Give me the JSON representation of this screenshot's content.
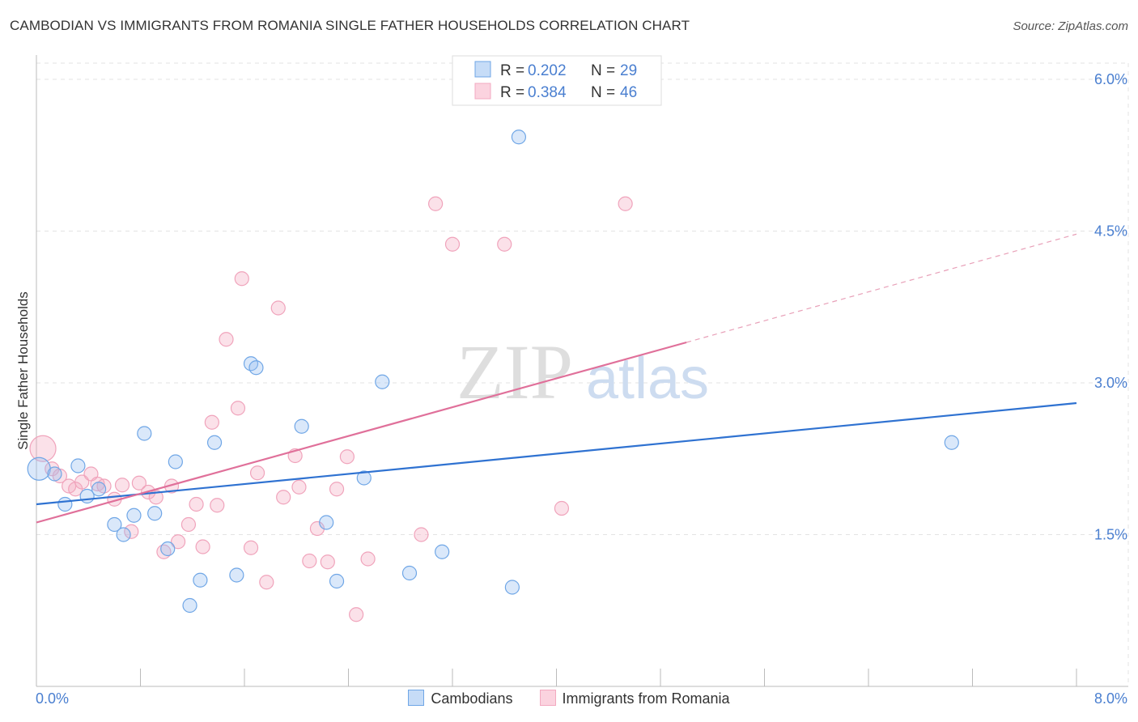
{
  "title": "CAMBODIAN VS IMMIGRANTS FROM ROMANIA SINGLE FATHER HOUSEHOLDS CORRELATION CHART",
  "source": "Source: ZipAtlas.com",
  "watermark": {
    "zip": "ZIP",
    "atlas": "atlas"
  },
  "colors": {
    "blue": "#6fa6e6",
    "blue_line": "#2f72d1",
    "pink": "#f3a9c0",
    "pink_line": "#e0709a",
    "axis_text": "#4a7fd0"
  },
  "chart_data": {
    "type": "scatter",
    "title": "CAMBODIAN VS IMMIGRANTS FROM ROMANIA SINGLE FATHER HOUSEHOLDS CORRELATION CHART",
    "xlabel": "",
    "ylabel": "Single Father Households",
    "xlim": [
      0,
      8
    ],
    "ylim": [
      0,
      6.2
    ],
    "x_tick_labels": [
      "0.0%",
      "8.0%"
    ],
    "y_ticks": [
      1.5,
      3.0,
      4.5,
      6.0
    ],
    "y_tick_labels": [
      "1.5%",
      "3.0%",
      "4.5%",
      "6.0%"
    ],
    "grid": true,
    "legend_position": "top-center",
    "series": [
      {
        "name": "Cambodians",
        "R": "0.202",
        "N": "29",
        "trend": {
          "x": [
            0,
            8
          ],
          "y": [
            1.8,
            2.8
          ]
        },
        "points": [
          [
            0.02,
            2.15
          ],
          [
            0.14,
            2.1
          ],
          [
            0.22,
            1.8
          ],
          [
            0.32,
            2.18
          ],
          [
            0.39,
            1.88
          ],
          [
            0.48,
            1.95
          ],
          [
            0.6,
            1.6
          ],
          [
            0.67,
            1.5
          ],
          [
            0.75,
            1.69
          ],
          [
            0.83,
            2.5
          ],
          [
            0.91,
            1.71
          ],
          [
            1.01,
            1.36
          ],
          [
            1.07,
            2.22
          ],
          [
            1.18,
            0.8
          ],
          [
            1.26,
            1.05
          ],
          [
            1.37,
            2.41
          ],
          [
            1.54,
            1.1
          ],
          [
            1.65,
            3.19
          ],
          [
            1.69,
            3.15
          ],
          [
            2.04,
            2.57
          ],
          [
            2.23,
            1.62
          ],
          [
            2.31,
            1.04
          ],
          [
            2.52,
            2.06
          ],
          [
            2.66,
            3.01
          ],
          [
            2.87,
            1.12
          ],
          [
            3.12,
            1.33
          ],
          [
            3.66,
            0.98
          ],
          [
            3.71,
            5.43
          ],
          [
            7.04,
            2.41
          ]
        ]
      },
      {
        "name": "Immigrants from Romania",
        "R": "0.384",
        "N": "46",
        "trend": {
          "x": [
            0,
            5.0
          ],
          "y": [
            1.62,
            3.4
          ]
        },
        "trend_dashed": {
          "x": [
            5.0,
            8.0
          ],
          "y": [
            3.4,
            4.47
          ]
        },
        "points": [
          [
            0.05,
            2.35
          ],
          [
            0.12,
            2.15
          ],
          [
            0.18,
            2.08
          ],
          [
            0.25,
            1.98
          ],
          [
            0.3,
            1.95
          ],
          [
            0.35,
            2.02
          ],
          [
            0.42,
            2.1
          ],
          [
            0.47,
            2.0
          ],
          [
            0.52,
            1.98
          ],
          [
            0.6,
            1.85
          ],
          [
            0.66,
            1.99
          ],
          [
            0.73,
            1.53
          ],
          [
            0.79,
            2.01
          ],
          [
            0.86,
            1.92
          ],
          [
            0.92,
            1.87
          ],
          [
            0.98,
            1.33
          ],
          [
            1.04,
            1.98
          ],
          [
            1.09,
            1.43
          ],
          [
            1.17,
            1.6
          ],
          [
            1.23,
            1.8
          ],
          [
            1.28,
            1.38
          ],
          [
            1.35,
            2.61
          ],
          [
            1.39,
            1.79
          ],
          [
            1.46,
            3.43
          ],
          [
            1.55,
            2.75
          ],
          [
            1.58,
            4.03
          ],
          [
            1.65,
            1.37
          ],
          [
            1.7,
            2.11
          ],
          [
            1.77,
            1.03
          ],
          [
            1.86,
            3.74
          ],
          [
            1.9,
            1.87
          ],
          [
            1.99,
            2.28
          ],
          [
            2.02,
            1.97
          ],
          [
            2.1,
            1.24
          ],
          [
            2.16,
            1.56
          ],
          [
            2.24,
            1.23
          ],
          [
            2.31,
            1.95
          ],
          [
            2.39,
            2.27
          ],
          [
            2.46,
            0.71
          ],
          [
            2.55,
            1.26
          ],
          [
            2.96,
            1.5
          ],
          [
            3.07,
            4.77
          ],
          [
            3.2,
            4.37
          ],
          [
            3.6,
            4.37
          ],
          [
            4.04,
            1.76
          ],
          [
            4.53,
            4.77
          ]
        ]
      }
    ]
  }
}
